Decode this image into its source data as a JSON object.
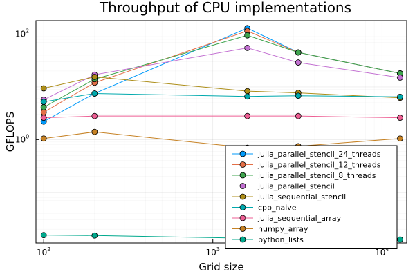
{
  "chart_data": {
    "type": "line",
    "title": "Throughput of CPU implementations",
    "xlabel": "Grid size",
    "ylabel": "GFLOPS",
    "xscale": "log",
    "yscale": "log",
    "xlim": [
      90,
      14000
    ],
    "ylim": [
      0.011,
      180
    ],
    "grid": true,
    "legend_position": "bottom-right",
    "x_ticks": [
      {
        "value": 100,
        "base": "10",
        "exp": "2"
      },
      {
        "value": 1000,
        "base": "10",
        "exp": "3"
      },
      {
        "value": 10000,
        "base": "10",
        "exp": "4"
      }
    ],
    "y_ticks": [
      {
        "value": 1,
        "base": "10",
        "exp": "0"
      },
      {
        "value": 100,
        "base": "10",
        "exp": "2"
      }
    ],
    "x": [
      100,
      200,
      1600,
      3200,
      12800
    ],
    "series": [
      {
        "name": "julia_parallel_stencil_24_threads",
        "color": "#009AFA",
        "values": [
          2.2,
          7.5,
          130,
          45,
          18
        ]
      },
      {
        "name": "julia_parallel_stencil_12_threads",
        "color": "#E36F47",
        "values": [
          3.3,
          12,
          115,
          45,
          18
        ]
      },
      {
        "name": "julia_parallel_stencil_8_threads",
        "color": "#3EA44E",
        "values": [
          4.1,
          14,
          95,
          45,
          18
        ]
      },
      {
        "name": "julia_parallel_stencil",
        "color": "#C371D2",
        "values": [
          5.7,
          17,
          55,
          29,
          15
        ]
      },
      {
        "name": "julia_sequential_stencil",
        "color": "#AC8D18",
        "values": [
          9.4,
          15.5,
          8.3,
          7.7,
          6.2
        ]
      },
      {
        "name": "cpp_naive",
        "color": "#00A9AD",
        "values": [
          5.2,
          7.5,
          6.6,
          6.8,
          6.5
        ]
      },
      {
        "name": "julia_sequential_array",
        "color": "#ED5E93",
        "values": [
          2.6,
          2.8,
          2.8,
          2.8,
          2.6
        ]
      },
      {
        "name": "numpy_array",
        "color": "#C68225",
        "values": [
          1.05,
          1.4,
          0.7,
          0.75,
          1.05
        ]
      },
      {
        "name": "python_lists",
        "color": "#00A98D",
        "values": [
          0.0155,
          0.0152,
          0.0135,
          0.0132,
          0.0128
        ]
      }
    ]
  }
}
